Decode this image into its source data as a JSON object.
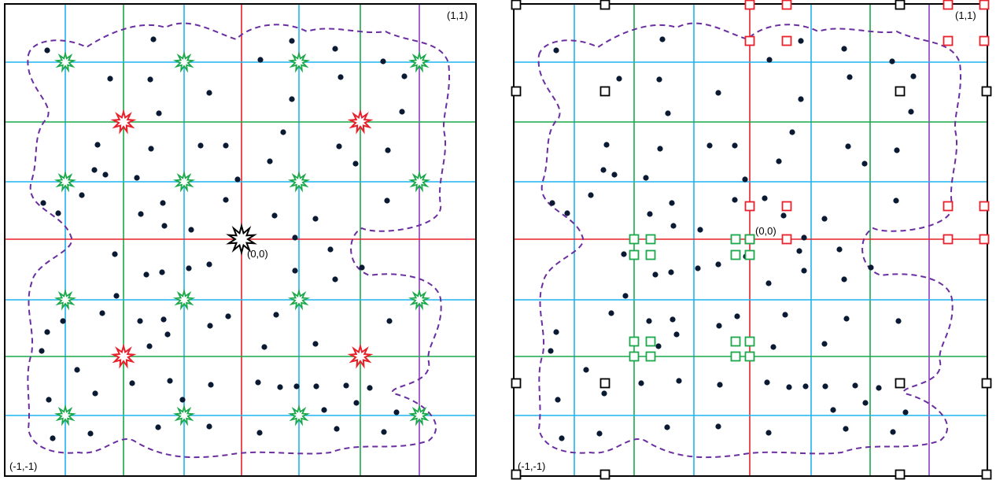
{
  "left_panel": {
    "corner_top_right": "(1,1)",
    "corner_bottom_left": "(-1,-1)",
    "origin_label": "(0,0)"
  },
  "right_panel": {
    "corner_top_right": "(1,1)",
    "corner_bottom_left": "(-1,-1)",
    "origin_label": "(0,0)"
  },
  "colors": {
    "frame": "#000000",
    "grid_blue": "#1fb3ef",
    "grid_green": "#1aa84a",
    "grid_red": "#e8202a",
    "grid_purple": "#8a3fc2",
    "boundary_dashed": "#6a2ea0",
    "points": "#0b1a33",
    "star_green": "#1aa84a",
    "star_red": "#e8202a",
    "star_origin": "#000000",
    "square_red": "#e8202a",
    "square_green": "#1aa84a",
    "square_black": "#000000"
  },
  "icons": {
    "green_marker": "green-star-icon",
    "red_marker": "red-star-icon",
    "origin_marker": "origin-star-icon",
    "red_cell_marker": "red-square-icon",
    "green_cell_marker": "green-square-icon",
    "black_cell_marker": "black-square-icon"
  }
}
